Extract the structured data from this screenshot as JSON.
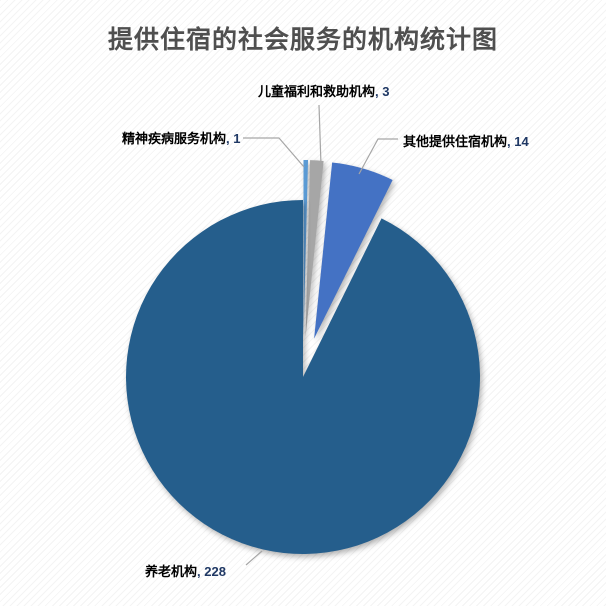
{
  "title": "提供住宿的社会服务的机构统计图",
  "colors": {
    "title_text": "#4f4f4f",
    "label_text": "#000000",
    "label_value": "#1f3864",
    "leader_line": "#a6a6a6",
    "slice_elder": "#255e8c",
    "slice_other": "#4472c4",
    "slice_child": "#a6a6a6",
    "slice_mental": "#5b9bd5"
  },
  "chart_data": {
    "type": "pie",
    "title": "提供住宿的社会服务的机构统计图",
    "total": 246,
    "start_angle_deg": 0,
    "direction": "clockwise",
    "legend": "none",
    "data_label_format": "category, value",
    "slices": [
      {
        "label": "精神疾病服务机构",
        "value": 1,
        "color": "#5b9bd5",
        "exploded": true
      },
      {
        "label": "儿童福利和救助机构",
        "value": 3,
        "color": "#a6a6a6",
        "exploded": true
      },
      {
        "label": "其他提供住宿机构",
        "value": 14,
        "color": "#4472c4",
        "exploded": true
      },
      {
        "label": "养老机构",
        "value": 228,
        "color": "#255e8c",
        "exploded": false
      }
    ]
  },
  "labels": {
    "separator": ", ",
    "child": {
      "text": "儿童福利和救助机构",
      "value": "3"
    },
    "mental": {
      "text": "精神疾病服务机构",
      "value": "1"
    },
    "other": {
      "text": "其他提供住宿机构",
      "value": "14"
    },
    "elder": {
      "text": "养老机构",
      "value": "228"
    }
  }
}
